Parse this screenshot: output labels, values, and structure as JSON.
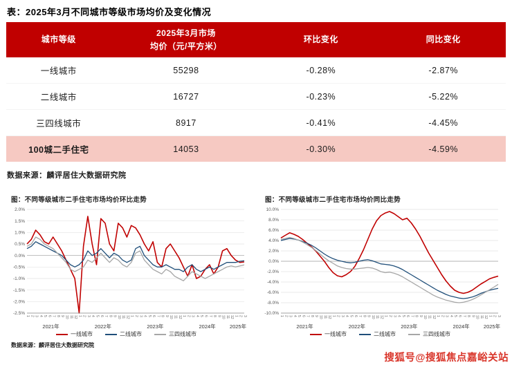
{
  "colors": {
    "header_bg": "#c00000",
    "highlight_row_bg": "#f6c9c2",
    "tier1_line": "#c00000",
    "tier2_line": "#1f4e79",
    "tier34_line": "#a6a6a6",
    "watermark_red": "#d9352a"
  },
  "page": {
    "title": "表：2025年3月不同城市等级市场均价及变化情况",
    "table_source": "数据来源：麟评居住大数据研究院",
    "watermark": "搜狐号@搜狐焦点嘉峪关站"
  },
  "table": {
    "col_tier": "城市等级",
    "col_price_line1": "2025年3月市场",
    "col_price_line2": "均价（元/平方米）",
    "col_mom": "环比变化",
    "col_yoy": "同比变化",
    "rows": [
      {
        "tier": "一线城市",
        "price": "55298",
        "mom": "-0.28%",
        "yoy": "-2.87%"
      },
      {
        "tier": "二线城市",
        "price": "16727",
        "mom": "-0.23%",
        "yoy": "-5.22%"
      },
      {
        "tier": "三四线城市",
        "price": "8917",
        "mom": "-0.41%",
        "yoy": "-4.45%"
      },
      {
        "tier": "100城二手住宅",
        "price": "14053",
        "mom": "-0.30%",
        "yoy": "-4.59%"
      }
    ]
  },
  "chart_data": [
    {
      "type": "line",
      "title": "图：不同等级城市二手住宅市场均价环比走势",
      "source": "数据来源：麟评居住大数据研究院",
      "ylim": [
        -2.5,
        2.0
      ],
      "ystep": 0.5,
      "grid": true,
      "legend_position": "bottom",
      "x_labels": [
        "1",
        "2",
        "3",
        "4",
        "5",
        "6",
        "7",
        "8",
        "9",
        "10",
        "11",
        "12",
        "1",
        "2",
        "3",
        "4",
        "5",
        "6",
        "7",
        "8",
        "9",
        "10",
        "11",
        "12",
        "1",
        "2",
        "3",
        "4",
        "5",
        "6",
        "7",
        "8",
        "9",
        "10",
        "11",
        "12",
        "1",
        "2",
        "3",
        "4",
        "5",
        "6",
        "7",
        "8",
        "9",
        "10",
        "11",
        "12",
        "1",
        "2",
        "3"
      ],
      "year_groups": [
        {
          "label": "2021年",
          "months": 12
        },
        {
          "label": "2022年",
          "months": 12
        },
        {
          "label": "2023年",
          "months": 12
        },
        {
          "label": "2024年",
          "months": 12
        },
        {
          "label": "2025年",
          "months": 3
        }
      ],
      "series": [
        {
          "name": "一线城市",
          "color": "#c00000",
          "width": 1.6,
          "values": [
            0.5,
            0.7,
            1.1,
            0.9,
            0.6,
            0.5,
            0.8,
            0.5,
            0.2,
            -0.2,
            -0.6,
            -1.0,
            -2.5,
            0.4,
            1.7,
            0.5,
            -0.4,
            1.6,
            1.4,
            0.5,
            0.2,
            1.4,
            1.2,
            0.8,
            1.3,
            1.2,
            0.9,
            0.5,
            0.2,
            0.6,
            -0.3,
            -0.5,
            0.3,
            0.5,
            0.2,
            -0.1,
            -0.5,
            -0.9,
            -0.4,
            -1.0,
            -0.9,
            -0.6,
            -0.4,
            -0.8,
            -0.5,
            0.2,
            0.3,
            0.0,
            -0.2,
            -0.3,
            -0.28
          ]
        },
        {
          "name": "二线城市",
          "color": "#1f4e79",
          "width": 1.3,
          "values": [
            0.3,
            0.4,
            0.6,
            0.5,
            0.4,
            0.3,
            0.2,
            0.1,
            0.0,
            -0.2,
            -0.4,
            -0.5,
            -0.4,
            -0.2,
            0.2,
            0.0,
            0.1,
            0.3,
            0.1,
            -0.1,
            0.1,
            0.0,
            -0.2,
            -0.3,
            -0.2,
            0.3,
            0.4,
            0.0,
            -0.2,
            -0.4,
            -0.5,
            -0.5,
            -0.4,
            -0.5,
            -0.6,
            -0.6,
            -0.7,
            -0.5,
            -0.4,
            -0.6,
            -0.7,
            -0.6,
            -0.5,
            -0.6,
            -0.5,
            -0.4,
            -0.3,
            -0.3,
            -0.3,
            -0.25,
            -0.23
          ]
        },
        {
          "name": "三四线城市",
          "color": "#a6a6a6",
          "width": 1.3,
          "values": [
            0.4,
            0.5,
            0.8,
            0.7,
            0.5,
            0.4,
            0.3,
            0.1,
            -0.1,
            -0.3,
            -0.6,
            -0.7,
            -0.6,
            -0.5,
            -0.2,
            -0.3,
            -0.1,
            0.1,
            -0.1,
            -0.3,
            -0.1,
            -0.2,
            -0.4,
            -0.5,
            -0.3,
            0.1,
            0.2,
            -0.2,
            -0.4,
            -0.6,
            -0.7,
            -0.8,
            -0.6,
            -0.7,
            -0.9,
            -1.0,
            -1.1,
            -0.9,
            -0.7,
            -0.8,
            -0.9,
            -1.0,
            -0.9,
            -0.8,
            -0.7,
            -0.6,
            -0.5,
            -0.45,
            -0.5,
            -0.45,
            -0.41
          ]
        }
      ]
    },
    {
      "type": "line",
      "title": "图：不同等级城市二手住宅市场均价同比走势",
      "source": "",
      "ylim": [
        -10.0,
        10.0
      ],
      "ystep": 2.0,
      "grid": true,
      "legend_position": "bottom",
      "x_labels": [
        "1",
        "2",
        "3",
        "4",
        "5",
        "6",
        "7",
        "8",
        "9",
        "10",
        "11",
        "12",
        "1",
        "2",
        "3",
        "4",
        "5",
        "6",
        "7",
        "8",
        "9",
        "10",
        "11",
        "12",
        "1",
        "2",
        "3",
        "4",
        "5",
        "6",
        "7",
        "8",
        "9",
        "10",
        "11",
        "12",
        "1",
        "2",
        "3",
        "4",
        "5",
        "6",
        "7",
        "8",
        "9",
        "10",
        "11",
        "12",
        "1",
        "2",
        "3"
      ],
      "year_groups": [
        {
          "label": "2021年",
          "months": 12
        },
        {
          "label": "2022年",
          "months": 12
        },
        {
          "label": "2023年",
          "months": 12
        },
        {
          "label": "2024年",
          "months": 12
        },
        {
          "label": "2025年",
          "months": 3
        }
      ],
      "series": [
        {
          "name": "一线城市",
          "color": "#c00000",
          "width": 1.6,
          "values": [
            4.5,
            5.0,
            5.5,
            5.2,
            4.8,
            4.2,
            3.5,
            2.8,
            2.0,
            1.0,
            0.0,
            -1.2,
            -2.2,
            -2.8,
            -3.0,
            -2.6,
            -2.0,
            -1.0,
            0.5,
            2.2,
            4.2,
            6.2,
            7.8,
            8.8,
            9.3,
            9.6,
            9.2,
            8.6,
            8.0,
            8.3,
            7.4,
            6.2,
            4.8,
            3.2,
            1.6,
            0.2,
            -1.2,
            -2.6,
            -3.8,
            -4.8,
            -5.6,
            -6.0,
            -6.2,
            -6.0,
            -5.6,
            -5.0,
            -4.4,
            -3.9,
            -3.4,
            -3.1,
            -2.87
          ]
        },
        {
          "name": "二线城市",
          "color": "#1f4e79",
          "width": 1.3,
          "values": [
            4.0,
            4.2,
            4.4,
            4.3,
            4.1,
            3.8,
            3.5,
            3.1,
            2.6,
            2.0,
            1.4,
            0.9,
            0.5,
            0.2,
            0.0,
            -0.2,
            -0.3,
            -0.2,
            0.0,
            0.2,
            0.3,
            0.1,
            -0.2,
            -0.5,
            -0.6,
            -0.7,
            -0.9,
            -1.2,
            -1.6,
            -2.1,
            -2.6,
            -3.1,
            -3.6,
            -4.1,
            -4.6,
            -5.1,
            -5.6,
            -6.0,
            -6.4,
            -6.7,
            -6.9,
            -7.1,
            -7.2,
            -7.1,
            -6.9,
            -6.6,
            -6.2,
            -5.9,
            -5.6,
            -5.4,
            -5.22
          ]
        },
        {
          "name": "三四线城市",
          "color": "#a6a6a6",
          "width": 1.3,
          "values": [
            4.2,
            4.4,
            4.6,
            4.4,
            4.1,
            3.7,
            3.2,
            2.7,
            2.1,
            1.4,
            0.7,
            0.1,
            -0.4,
            -0.9,
            -1.2,
            -1.4,
            -1.5,
            -1.5,
            -1.4,
            -1.3,
            -1.2,
            -1.3,
            -1.6,
            -2.0,
            -2.2,
            -2.1,
            -2.3,
            -2.6,
            -3.0,
            -3.5,
            -4.0,
            -4.5,
            -5.0,
            -5.5,
            -6.0,
            -6.5,
            -6.9,
            -7.2,
            -7.5,
            -7.7,
            -7.9,
            -8.0,
            -7.9,
            -7.7,
            -7.4,
            -7.0,
            -6.5,
            -6.0,
            -5.5,
            -5.0,
            -4.45
          ]
        }
      ]
    }
  ]
}
